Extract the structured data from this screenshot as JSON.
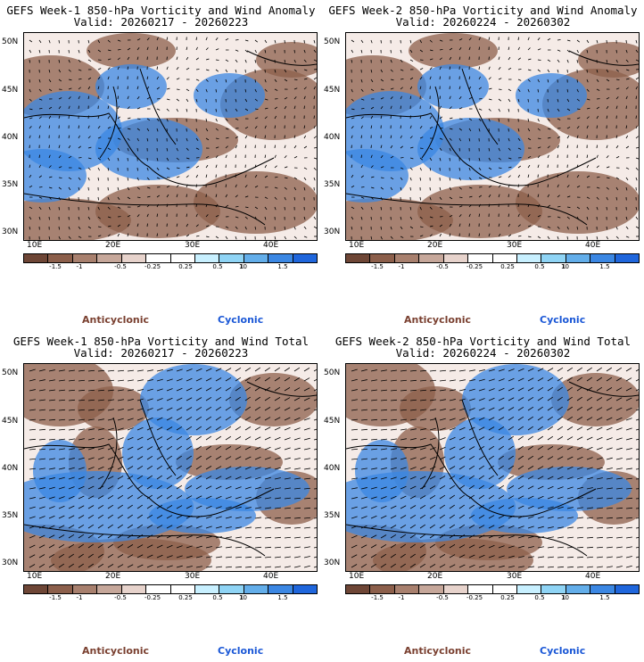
{
  "panels": [
    {
      "title1": "GEFS Week-1 850-hPa Vorticity and Wind Anomaly",
      "title2": "Valid: 20260217 - 20260223"
    },
    {
      "title1": "GEFS Week-2 850-hPa Vorticity and Wind Anomaly",
      "title2": "Valid: 20260224 - 20260302"
    },
    {
      "title1": "GEFS Week-1 850-hPa Vorticity and Wind Total",
      "title2": "Valid: 20260217 - 20260223"
    },
    {
      "title1": "GEFS Week-2 850-hPa Vorticity and Wind Total",
      "title2": "Valid: 20260224 - 20260302"
    }
  ],
  "lat_labels": [
    "50N",
    "45N",
    "40N",
    "35N",
    "30N"
  ],
  "lon_labels": [
    "10E",
    "20E",
    "30E",
    "40E"
  ],
  "colorbar": {
    "ticks": [
      "-1.5",
      "-1",
      "-0.5",
      "-0.25",
      "0.25",
      "0.5",
      "1",
      "1.5"
    ],
    "unit": "10",
    "colors": [
      "#6e4636",
      "#8c5f4b",
      "#a8806e",
      "#c6a79a",
      "#e7d3cc",
      "#ffffff",
      "#ffffff",
      "#c8f0ff",
      "#8fd4f5",
      "#63aeea",
      "#3b87e3",
      "#1f66dc"
    ]
  },
  "legend": {
    "anticyclonic": "Anticyclonic",
    "cyclonic": "Cyclonic"
  },
  "colors": {
    "anticyclonic": "#7a4030",
    "cyclonic": "#1a57d6"
  }
}
